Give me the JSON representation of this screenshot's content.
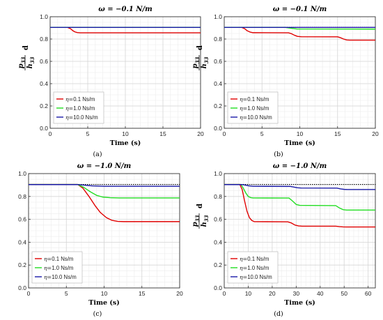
{
  "legend_prefix": "η=",
  "ylabel": {
    "num": "p33",
    "den": "h33",
    "suffix": "d"
  },
  "chart_data": [
    {
      "type": "line",
      "panel_label": "(a)",
      "title": "ω = −0.1 N/m",
      "xlabel": "Time (s)",
      "xlim": [
        0,
        20
      ],
      "ylim": [
        0,
        1.0
      ],
      "xticks": [
        0,
        5,
        10,
        15,
        20
      ],
      "yticks": [
        0.0,
        0.2,
        0.4,
        0.6,
        0.8,
        1.0
      ],
      "ytick_labels": [
        "0.0",
        "0.2",
        "0.4",
        "0.6",
        "0.8",
        "1.0"
      ],
      "show_ylabel": true,
      "grid": true,
      "legend_position": "bottom-left",
      "reference_line": {
        "y": 0.905,
        "style": "dotted",
        "color": "#000000"
      },
      "series": [
        {
          "name": "0.1 Ns/m",
          "color": "#e00000",
          "x": [
            0,
            2.3,
            2.7,
            3.0,
            3.3,
            3.6,
            4.0,
            20
          ],
          "y": [
            0.905,
            0.905,
            0.893,
            0.876,
            0.864,
            0.858,
            0.856,
            0.856
          ]
        },
        {
          "name": "1.0 Ns/m",
          "color": "#22dd22",
          "x": [
            0,
            20
          ],
          "y": [
            0.905,
            0.905
          ]
        },
        {
          "name": "10.0 Ns/m",
          "color": "#1a1aa8",
          "x": [
            0,
            20
          ],
          "y": [
            0.904,
            0.904
          ]
        }
      ]
    },
    {
      "type": "line",
      "panel_label": "(b)",
      "title": "ω = −0.1 N/m",
      "xlabel": "Time (s)",
      "xlim": [
        0,
        20
      ],
      "ylim": [
        0,
        1.0
      ],
      "xticks": [
        0,
        5,
        10,
        15,
        20
      ],
      "yticks": [
        0.0,
        0.2,
        0.4,
        0.6,
        0.8,
        1.0
      ],
      "ytick_labels": [
        "0.0",
        "0.2",
        "0.4",
        "0.6",
        "0.8",
        "1.0"
      ],
      "show_ylabel": true,
      "grid": true,
      "legend_position": "bottom-left",
      "reference_line": {
        "y": 0.905,
        "style": "dotted",
        "color": "#000000"
      },
      "series": [
        {
          "name": "0.1 Ns/m",
          "color": "#e00000",
          "x": [
            0,
            2.3,
            2.7,
            3.0,
            3.4,
            3.8,
            8.5,
            8.9,
            9.3,
            9.7,
            10.2,
            15.0,
            15.4,
            15.8,
            16.2,
            16.6,
            20
          ],
          "y": [
            0.905,
            0.905,
            0.893,
            0.876,
            0.863,
            0.857,
            0.856,
            0.848,
            0.834,
            0.824,
            0.821,
            0.82,
            0.812,
            0.8,
            0.792,
            0.79,
            0.79
          ]
        },
        {
          "name": "1.0 Ns/m",
          "color": "#22dd22",
          "x": [
            0,
            8.0,
            8.8,
            9.6,
            20
          ],
          "y": [
            0.905,
            0.905,
            0.897,
            0.89,
            0.889
          ]
        },
        {
          "name": "10.0 Ns/m",
          "color": "#1a1aa8",
          "x": [
            0,
            20
          ],
          "y": [
            0.904,
            0.904
          ]
        }
      ]
    },
    {
      "type": "line",
      "panel_label": "(c)",
      "title": "ω = −1.0 N/m",
      "xlabel": "Time (s)",
      "xlim": [
        0,
        20
      ],
      "ylim": [
        0,
        1.0
      ],
      "xticks": [
        0,
        5,
        10,
        15,
        20
      ],
      "yticks": [
        0.0,
        0.2,
        0.4,
        0.6,
        0.8,
        1.0
      ],
      "ytick_labels": [
        "0.0",
        "0.2",
        "0.4",
        "0.6",
        "0.8",
        "1.0"
      ],
      "show_ylabel": false,
      "grid": true,
      "legend_position": "bottom-left",
      "reference_line": {
        "y": 0.905,
        "style": "dotted",
        "color": "#000000"
      },
      "series": [
        {
          "name": "0.1 Ns/m",
          "color": "#e00000",
          "x": [
            0,
            6.5,
            7.2,
            8.0,
            8.8,
            9.5,
            10.3,
            11.0,
            11.8,
            12.6,
            20
          ],
          "y": [
            0.905,
            0.905,
            0.872,
            0.8,
            0.72,
            0.66,
            0.615,
            0.592,
            0.582,
            0.58,
            0.58
          ]
        },
        {
          "name": "1.0 Ns/m",
          "color": "#22dd22",
          "x": [
            0,
            6.5,
            7.3,
            8.2,
            9.0,
            9.8,
            10.8,
            12.0,
            20
          ],
          "y": [
            0.905,
            0.905,
            0.88,
            0.84,
            0.81,
            0.795,
            0.789,
            0.787,
            0.787
          ]
        },
        {
          "name": "10.0 Ns/m",
          "color": "#1a1aa8",
          "x": [
            0,
            6.5,
            7.5,
            8.5,
            10.0,
            20
          ],
          "y": [
            0.904,
            0.904,
            0.898,
            0.892,
            0.889,
            0.889
          ]
        }
      ]
    },
    {
      "type": "line",
      "panel_label": "(d)",
      "title": "ω = −1.0 N/m",
      "xlabel": "Time (s)",
      "xlim": [
        0,
        63
      ],
      "ylim": [
        0,
        1.0
      ],
      "xticks": [
        0,
        10,
        20,
        30,
        40,
        50,
        60
      ],
      "yticks": [
        0.0,
        0.2,
        0.4,
        0.6,
        0.8,
        1.0
      ],
      "ytick_labels": [
        "0.0",
        "0.2",
        "0.4",
        "0.6",
        "0.8",
        "1.0"
      ],
      "show_ylabel": true,
      "grid": true,
      "legend_position": "bottom-left",
      "reference_line": {
        "y": 0.905,
        "style": "dotted",
        "color": "#000000"
      },
      "series": [
        {
          "name": "0.1 Ns/m",
          "color": "#e00000",
          "x": [
            0,
            6.5,
            7.5,
            8.5,
            9.5,
            10.5,
            11.5,
            12.5,
            26.5,
            28.0,
            29.5,
            31.0,
            32.5,
            46.5,
            48.0,
            49.5,
            51.0,
            63
          ],
          "y": [
            0.905,
            0.905,
            0.86,
            0.76,
            0.67,
            0.615,
            0.59,
            0.58,
            0.578,
            0.568,
            0.55,
            0.542,
            0.54,
            0.54,
            0.536,
            0.534,
            0.533,
            0.533
          ]
        },
        {
          "name": "1.0 Ns/m",
          "color": "#22dd22",
          "x": [
            0,
            7.0,
            8.0,
            9.0,
            10.0,
            11.0,
            12.0,
            27.0,
            28.5,
            30.0,
            31.5,
            46.5,
            48.0,
            49.5,
            51.0,
            63
          ],
          "y": [
            0.905,
            0.905,
            0.87,
            0.83,
            0.8,
            0.79,
            0.787,
            0.786,
            0.76,
            0.73,
            0.722,
            0.72,
            0.7,
            0.685,
            0.681,
            0.681
          ]
        },
        {
          "name": "10.0 Ns/m",
          "color": "#1a1aa8",
          "x": [
            0,
            7.5,
            9.0,
            10.5,
            12.0,
            27.5,
            29.0,
            30.5,
            32.0,
            47.0,
            48.5,
            50.0,
            51.5,
            63
          ],
          "y": [
            0.904,
            0.904,
            0.898,
            0.892,
            0.889,
            0.888,
            0.882,
            0.876,
            0.874,
            0.873,
            0.866,
            0.862,
            0.861,
            0.861
          ]
        }
      ]
    }
  ]
}
